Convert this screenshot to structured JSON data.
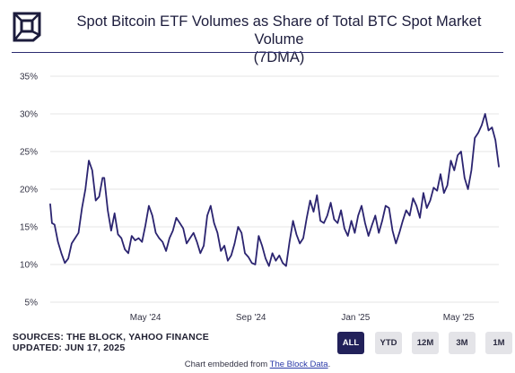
{
  "header": {
    "title_line1": "Spot Bitcoin ETF Volumes as Share of Total BTC Spot Market Volume",
    "title_line2": "(7DMA)"
  },
  "chart_data": {
    "type": "line",
    "title": "Spot Bitcoin ETF Volumes as Share of Total BTC Spot Market Volume (7DMA)",
    "xlabel": "",
    "ylabel": "",
    "ylim": [
      5,
      35
    ],
    "yticks": [
      "35%",
      "30%",
      "25%",
      "20%",
      "15%",
      "10%",
      "5%"
    ],
    "ytick_values": [
      35,
      30,
      25,
      20,
      15,
      10,
      5
    ],
    "xticks": [
      {
        "label": "May '24",
        "date": "2024-05-01"
      },
      {
        "label": "Sep '24",
        "date": "2024-09-01"
      },
      {
        "label": "Jan '25",
        "date": "2025-01-01"
      },
      {
        "label": "May '25",
        "date": "2025-05-01"
      }
    ],
    "xlim": [
      "2024-01-11",
      "2025-06-17"
    ],
    "grid": true,
    "line_color": "#2b2470",
    "series": [
      {
        "x": [
          "2024-01-11",
          "2024-01-13",
          "2024-01-16",
          "2024-01-20",
          "2024-01-24",
          "2024-01-28",
          "2024-02-01",
          "2024-02-05",
          "2024-02-09",
          "2024-02-13",
          "2024-02-17",
          "2024-02-21",
          "2024-02-25",
          "2024-02-29",
          "2024-03-04",
          "2024-03-08",
          "2024-03-12",
          "2024-03-14",
          "2024-03-18",
          "2024-03-22",
          "2024-03-26",
          "2024-03-30",
          "2024-04-03",
          "2024-04-07",
          "2024-04-11",
          "2024-04-15",
          "2024-04-19",
          "2024-04-23",
          "2024-04-27",
          "2024-05-01",
          "2024-05-05",
          "2024-05-09",
          "2024-05-13",
          "2024-05-17",
          "2024-05-21",
          "2024-05-25",
          "2024-05-29",
          "2024-06-02",
          "2024-06-06",
          "2024-06-10",
          "2024-06-14",
          "2024-06-18",
          "2024-06-22",
          "2024-06-26",
          "2024-06-30",
          "2024-07-04",
          "2024-07-08",
          "2024-07-12",
          "2024-07-16",
          "2024-07-20",
          "2024-07-24",
          "2024-07-28",
          "2024-08-01",
          "2024-08-05",
          "2024-08-09",
          "2024-08-13",
          "2024-08-17",
          "2024-08-21",
          "2024-08-25",
          "2024-08-29",
          "2024-09-02",
          "2024-09-06",
          "2024-09-10",
          "2024-09-14",
          "2024-09-18",
          "2024-09-22",
          "2024-09-26",
          "2024-09-30",
          "2024-10-04",
          "2024-10-08",
          "2024-10-12",
          "2024-10-16",
          "2024-10-20",
          "2024-10-24",
          "2024-10-28",
          "2024-11-01",
          "2024-11-05",
          "2024-11-09",
          "2024-11-13",
          "2024-11-17",
          "2024-11-21",
          "2024-11-25",
          "2024-11-29",
          "2024-12-03",
          "2024-12-07",
          "2024-12-11",
          "2024-12-15",
          "2024-12-19",
          "2024-12-23",
          "2024-12-27",
          "2024-12-31",
          "2025-01-04",
          "2025-01-08",
          "2025-01-12",
          "2025-01-16",
          "2025-01-20",
          "2025-01-24",
          "2025-01-28",
          "2025-02-01",
          "2025-02-05",
          "2025-02-09",
          "2025-02-13",
          "2025-02-17",
          "2025-02-21",
          "2025-02-25",
          "2025-03-01",
          "2025-03-05",
          "2025-03-09",
          "2025-03-13",
          "2025-03-17",
          "2025-03-21",
          "2025-03-25",
          "2025-03-29",
          "2025-04-02",
          "2025-04-06",
          "2025-04-10",
          "2025-04-14",
          "2025-04-18",
          "2025-04-22",
          "2025-04-26",
          "2025-04-30",
          "2025-05-04",
          "2025-05-08",
          "2025-05-12",
          "2025-05-16",
          "2025-05-20",
          "2025-05-24",
          "2025-05-28",
          "2025-06-01",
          "2025-06-05",
          "2025-06-09",
          "2025-06-13",
          "2025-06-17"
        ],
        "values": [
          18.0,
          15.5,
          15.3,
          13.0,
          11.5,
          10.2,
          10.8,
          12.8,
          13.5,
          14.2,
          17.5,
          20.0,
          23.8,
          22.5,
          18.5,
          19.0,
          21.5,
          21.5,
          17.2,
          14.5,
          16.8,
          14.0,
          13.5,
          12.0,
          11.5,
          13.8,
          13.2,
          13.5,
          13.0,
          15.2,
          17.8,
          16.5,
          14.2,
          13.5,
          13.0,
          11.8,
          13.5,
          14.5,
          16.2,
          15.5,
          14.8,
          12.8,
          13.5,
          14.2,
          13.0,
          11.5,
          12.5,
          16.5,
          17.8,
          15.5,
          14.2,
          11.8,
          12.5,
          10.5,
          11.2,
          12.8,
          15.0,
          14.2,
          11.5,
          11.0,
          10.2,
          10.0,
          13.8,
          12.5,
          10.8,
          9.8,
          11.5,
          10.5,
          11.2,
          10.2,
          9.8,
          13.0,
          15.8,
          14.0,
          12.8,
          13.5,
          16.2,
          18.5,
          17.0,
          19.2,
          15.8,
          15.5,
          16.5,
          18.2,
          16.0,
          15.5,
          17.2,
          14.8,
          13.8,
          15.8,
          14.2,
          16.5,
          17.8,
          15.5,
          13.8,
          15.2,
          16.5,
          14.2,
          15.8,
          17.8,
          17.5,
          14.5,
          12.8,
          14.2,
          15.8,
          17.2,
          16.5,
          18.8,
          17.8,
          16.2,
          19.5,
          17.5,
          18.5,
          20.2,
          19.8,
          22.0,
          19.5,
          20.5,
          23.8,
          22.5,
          24.5,
          25.0,
          21.5,
          20.0,
          22.5,
          26.8,
          27.5,
          28.5,
          30.0,
          27.8,
          28.2,
          26.5,
          23.0
        ]
      }
    ]
  },
  "footer_info": {
    "sources": "SOURCES: THE BLOCK, YAHOO FINANCE",
    "updated": "UPDATED: JUN 17, 2025"
  },
  "range_buttons": [
    {
      "label": "ALL",
      "active": true
    },
    {
      "label": "YTD",
      "active": false
    },
    {
      "label": "12M",
      "active": false
    },
    {
      "label": "3M",
      "active": false
    },
    {
      "label": "1M",
      "active": false
    }
  ],
  "embed": {
    "prefix": "Chart embedded from ",
    "link_text": "The Block Data",
    "suffix": "."
  },
  "colors": {
    "accent": "#22215a",
    "line": "#2b2470",
    "grid": "#e6e6e6"
  }
}
